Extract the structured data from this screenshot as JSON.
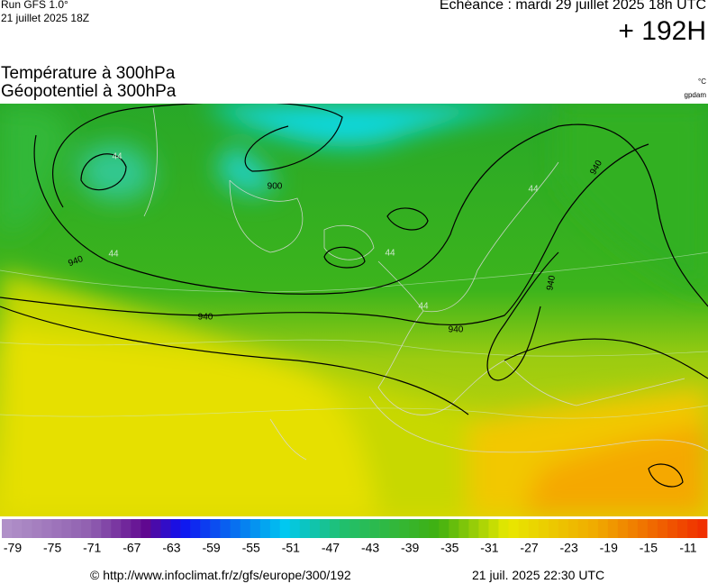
{
  "header": {
    "run": "Run GFS 1.0°",
    "run_date": "21 juillet 2025 18Z",
    "valid": "Echéance : mardi 29 juillet 2025 18h UTC",
    "lead": "+ 192H"
  },
  "titles": {
    "line1": "Température à 300hPa",
    "line2": "Géopotentiel à 300hPa",
    "unit_temp": "°C",
    "unit_geo": "gpdam"
  },
  "map": {
    "contour_labels": [
      "900",
      "940",
      "940",
      "940",
      "940",
      "940",
      "44",
      "44",
      "44",
      "44",
      "44"
    ]
  },
  "legend": {
    "labels": [
      -79,
      -75,
      -71,
      -67,
      -63,
      -59,
      -55,
      -51,
      -47,
      -43,
      -39,
      -35,
      -31,
      -27,
      -23,
      -19,
      -15,
      -11
    ]
  },
  "footer": {
    "url": "© http://www.infoclimat.fr/z/gfs/europe/300/192",
    "issued": "21 juil. 2025 22:30 UTC"
  }
}
